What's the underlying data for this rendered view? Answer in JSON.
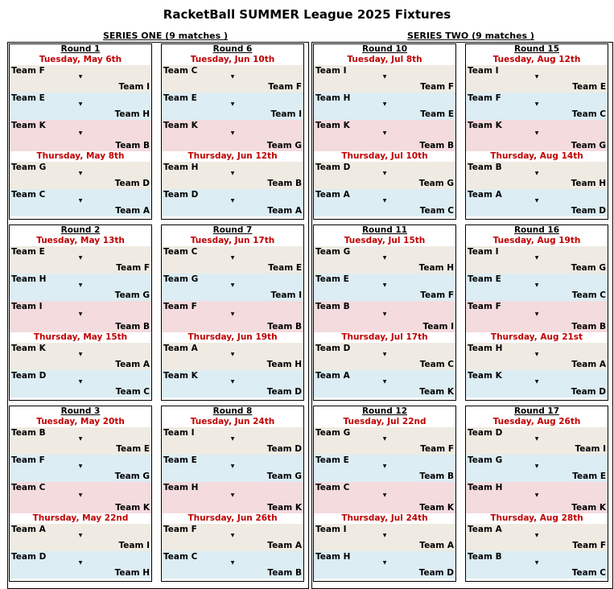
{
  "title": "RacketBall SUMMER League 2025 Fixtures",
  "colors": {
    "date_red": "#c00000",
    "row_beige": "#efebe2",
    "row_blue": "#dcedf4",
    "row_pink": "#f4dbdd"
  },
  "vs_icon": "triangle-down-icon",
  "series": [
    {
      "label": "SERIES ONE (9 matches )",
      "columns": [
        [
          {
            "title": "Round 1",
            "day1": {
              "date": "Tuesday, May 6th",
              "matches": [
                {
                  "home": "Team F",
                  "away": "Team I"
                },
                {
                  "home": "Team E",
                  "away": "Team H"
                },
                {
                  "home": "Team K",
                  "away": "Team B"
                }
              ]
            },
            "day2": {
              "date": "Thursday, May 8th",
              "matches": [
                {
                  "home": "Team G",
                  "away": "Team D"
                },
                {
                  "home": "Team C",
                  "away": "Team A"
                }
              ]
            }
          },
          {
            "title": "Round 2",
            "day1": {
              "date": "Tuesday, May 13th",
              "matches": [
                {
                  "home": "Team E",
                  "away": "Team F"
                },
                {
                  "home": "Team H",
                  "away": "Team G"
                },
                {
                  "home": "Team I",
                  "away": "Team B"
                }
              ]
            },
            "day2": {
              "date": "Thursday, May 15th",
              "matches": [
                {
                  "home": "Team K",
                  "away": "Team A"
                },
                {
                  "home": "Team D",
                  "away": "Team C"
                }
              ]
            }
          },
          {
            "title": "Round 3",
            "day1": {
              "date": "Tuesday, May 20th",
              "matches": [
                {
                  "home": "Team B",
                  "away": "Team E"
                },
                {
                  "home": "Team F",
                  "away": "Team G"
                },
                {
                  "home": "Team C",
                  "away": "Team K"
                }
              ]
            },
            "day2": {
              "date": "Thursday, May 22nd",
              "matches": [
                {
                  "home": "Team A",
                  "away": "Team I"
                },
                {
                  "home": "Team D",
                  "away": "Team H"
                }
              ]
            }
          }
        ],
        [
          {
            "title": "Round 6",
            "day1": {
              "date": "Tuesday, Jun 10th",
              "matches": [
                {
                  "home": "Team C",
                  "away": "Team F"
                },
                {
                  "home": "Team E",
                  "away": "Team I"
                },
                {
                  "home": "Team K",
                  "away": "Team G"
                }
              ]
            },
            "day2": {
              "date": "Thursday, Jun 12th",
              "matches": [
                {
                  "home": "Team H",
                  "away": "Team B"
                },
                {
                  "home": "Team D",
                  "away": "Team A"
                }
              ]
            }
          },
          {
            "title": "Round 7",
            "day1": {
              "date": "Tuesday, Jun 17th",
              "matches": [
                {
                  "home": "Team C",
                  "away": "Team E"
                },
                {
                  "home": "Team G",
                  "away": "Team I"
                },
                {
                  "home": "Team F",
                  "away": "Team B"
                }
              ]
            },
            "day2": {
              "date": "Thursday, Jun 19th",
              "matches": [
                {
                  "home": "Team A",
                  "away": "Team H"
                },
                {
                  "home": "Team K",
                  "away": "Team D"
                }
              ]
            }
          },
          {
            "title": "Round 8",
            "day1": {
              "date": "Tuesday, Jun 24th",
              "matches": [
                {
                  "home": "Team I",
                  "away": "Team D"
                },
                {
                  "home": "Team E",
                  "away": "Team G"
                },
                {
                  "home": "Team H",
                  "away": "Team K"
                }
              ]
            },
            "day2": {
              "date": "Thursday, Jun 26th",
              "matches": [
                {
                  "home": "Team F",
                  "away": "Team A"
                },
                {
                  "home": "Team C",
                  "away": "Team B"
                }
              ]
            }
          }
        ]
      ]
    },
    {
      "label": "SERIES TWO (9 matches )",
      "columns": [
        [
          {
            "title": "Round 10",
            "day1": {
              "date": "Tuesday, Jul 8th",
              "matches": [
                {
                  "home": "Team I",
                  "away": "Team F"
                },
                {
                  "home": "Team H",
                  "away": "Team E"
                },
                {
                  "home": "Team K",
                  "away": "Team B"
                }
              ]
            },
            "day2": {
              "date": "Thursday, Jul 10th",
              "matches": [
                {
                  "home": "Team D",
                  "away": "Team G"
                },
                {
                  "home": "Team A",
                  "away": "Team C"
                }
              ]
            }
          },
          {
            "title": "Round 11",
            "day1": {
              "date": "Tuesday, Jul 15th",
              "matches": [
                {
                  "home": "Team G",
                  "away": "Team H"
                },
                {
                  "home": "Team E",
                  "away": "Team F"
                },
                {
                  "home": "Team B",
                  "away": "Team I"
                }
              ]
            },
            "day2": {
              "date": "Thursday, Jul 17th",
              "matches": [
                {
                  "home": "Team D",
                  "away": "Team C"
                },
                {
                  "home": "Team A",
                  "away": "Team K"
                }
              ]
            }
          },
          {
            "title": "Round 12",
            "day1": {
              "date": "Tuesday, Jul 22nd",
              "matches": [
                {
                  "home": "Team G",
                  "away": "Team F"
                },
                {
                  "home": "Team E",
                  "away": "Team B"
                },
                {
                  "home": "Team C",
                  "away": "Team K"
                }
              ]
            },
            "day2": {
              "date": "Thursday, Jul 24th",
              "matches": [
                {
                  "home": "Team I",
                  "away": "Team A"
                },
                {
                  "home": "Team H",
                  "away": "Team D"
                }
              ]
            }
          }
        ],
        [
          {
            "title": "Round 15",
            "day1": {
              "date": "Tuesday, Aug 12th",
              "matches": [
                {
                  "home": "Team I",
                  "away": "Team E"
                },
                {
                  "home": "Team F",
                  "away": "Team C"
                },
                {
                  "home": "Team K",
                  "away": "Team G"
                }
              ]
            },
            "day2": {
              "date": "Thursday, Aug 14th",
              "matches": [
                {
                  "home": "Team B",
                  "away": "Team H"
                },
                {
                  "home": "Team A",
                  "away": "Team D"
                }
              ]
            }
          },
          {
            "title": "Round 16",
            "day1": {
              "date": "Tuesday, Aug 19th",
              "matches": [
                {
                  "home": "Team I",
                  "away": "Team G"
                },
                {
                  "home": "Team E",
                  "away": "Team C"
                },
                {
                  "home": "Team F",
                  "away": "Team B"
                }
              ]
            },
            "day2": {
              "date": "Thursday, Aug 21st",
              "matches": [
                {
                  "home": "Team H",
                  "away": "Team A"
                },
                {
                  "home": "Team K",
                  "away": "Team D"
                }
              ]
            }
          },
          {
            "title": "Round 17",
            "day1": {
              "date": "Tuesday, Aug 26th",
              "matches": [
                {
                  "home": "Team D",
                  "away": "Team I"
                },
                {
                  "home": "Team G",
                  "away": "Team E"
                },
                {
                  "home": "Team H",
                  "away": "Team K"
                }
              ]
            },
            "day2": {
              "date": "Thursday, Aug 28th",
              "matches": [
                {
                  "home": "Team A",
                  "away": "Team F"
                },
                {
                  "home": "Team B",
                  "away": "Team C"
                }
              ]
            }
          }
        ]
      ]
    }
  ]
}
